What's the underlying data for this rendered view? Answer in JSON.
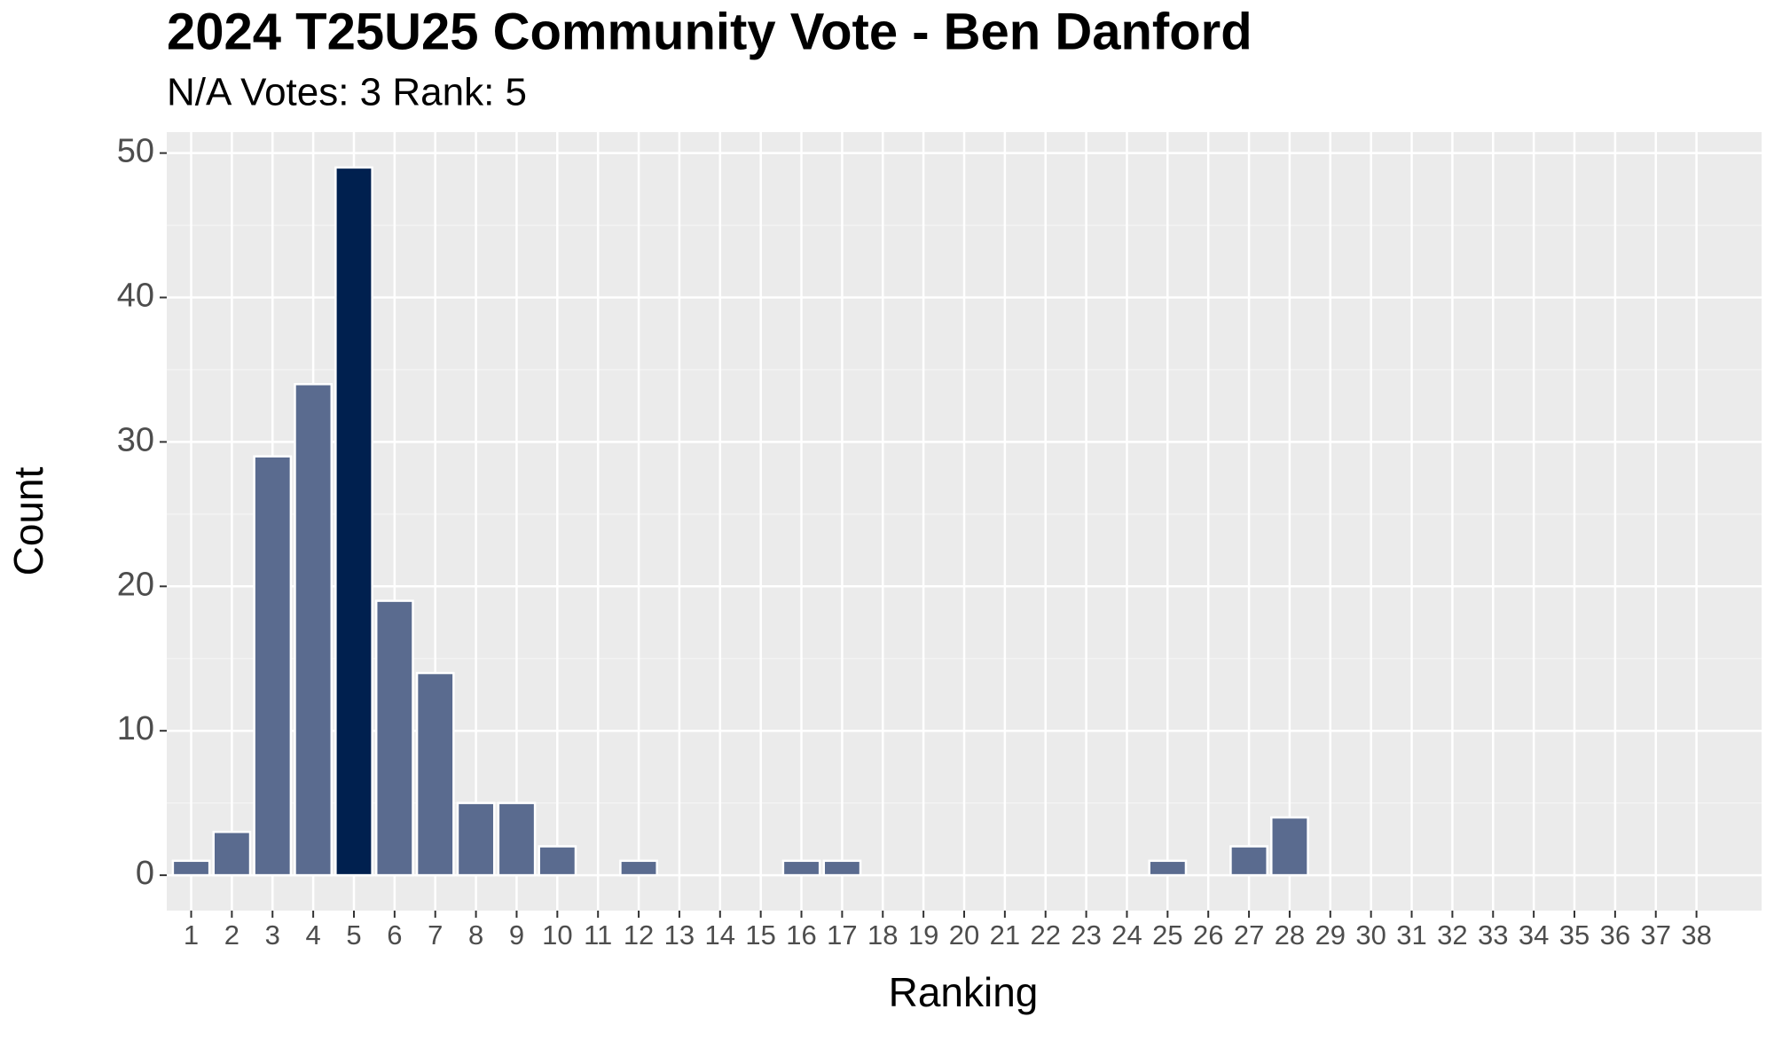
{
  "chart_data": {
    "type": "bar",
    "title": "2024 T25U25 Community Vote - Ben Danford",
    "subtitle": "N/A Votes: 3  Rank: 5",
    "x_label": "Ranking",
    "y_label": "Count",
    "categories": [
      1,
      2,
      3,
      4,
      5,
      6,
      7,
      8,
      9,
      10,
      11,
      12,
      13,
      14,
      15,
      16,
      17,
      18,
      19,
      20,
      21,
      22,
      23,
      24,
      25,
      26,
      27,
      28,
      29,
      30,
      31,
      32,
      33,
      34,
      35,
      36,
      37,
      38
    ],
    "values": [
      1,
      3,
      29,
      34,
      49,
      19,
      14,
      5,
      5,
      2,
      0,
      1,
      0,
      0,
      0,
      1,
      1,
      0,
      0,
      0,
      0,
      0,
      0,
      0,
      1,
      0,
      2,
      4,
      0,
      0,
      0,
      0,
      0,
      0,
      0,
      0,
      0,
      0
    ],
    "colors": [
      "#5a6b8f",
      "#5a6b8f",
      "#5a6b8f",
      "#5a6b8f",
      "#00204f",
      "#5a6b8f",
      "#5a6b8f",
      "#5a6b8f",
      "#5a6b8f",
      "#5a6b8f",
      "#5a6b8f",
      "#5a6b8f",
      "#5a6b8f",
      "#5a6b8f",
      "#5a6b8f",
      "#5a6b8f",
      "#5a6b8f",
      "#5a6b8f",
      "#5a6b8f",
      "#5a6b8f",
      "#5a6b8f",
      "#5a6b8f",
      "#5a6b8f",
      "#5a6b8f",
      "#5a6b8f",
      "#5a6b8f",
      "#5a6b8f",
      "#5a6b8f",
      "#5a6b8f",
      "#5a6b8f",
      "#5a6b8f",
      "#5a6b8f",
      "#5a6b8f",
      "#5a6b8f",
      "#5a6b8f",
      "#5a6b8f",
      "#5a6b8f",
      "#5a6b8f"
    ],
    "ylim": [
      -2.45,
      51.45
    ],
    "yticks": [
      0,
      10,
      20,
      30,
      40,
      50
    ],
    "grid": true
  }
}
